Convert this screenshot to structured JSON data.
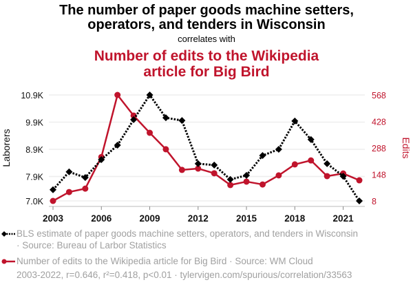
{
  "header": {
    "title_line1": "The number of paper goods machine setters,",
    "title_line2": "operators, and tenders in Wisconsin",
    "connector": "correlates with",
    "title2_line1": "Number of edits to the Wikipedia",
    "title2_line2": "article for Big Bird"
  },
  "legend": {
    "series1_line1": "BLS estimate of paper goods machine setters, operators, and tenders in Wisconsin",
    "series1_line2": "· Source: Bureau of Larbor Statistics",
    "series2": "Number of edits to the Wikipedia article for Big Bird · Source: WM Cloud",
    "footer": "2003-2022, r=0.646, r²=0.418, p<0.01 · tylervigen.com/spurious/correlation/33563"
  },
  "colors": {
    "series1": "#000000",
    "series2": "#c0142c",
    "grid": "#eeeeee",
    "legend_text": "#a0a0a0"
  },
  "chart_data": {
    "type": "line",
    "title": "The number of paper goods machine setters, operators, and tenders in Wisconsin correlates with Number of edits to the Wikipedia article for Big Bird",
    "x": [
      2003,
      2004,
      2005,
      2006,
      2007,
      2008,
      2009,
      2010,
      2011,
      2012,
      2013,
      2014,
      2015,
      2016,
      2017,
      2018,
      2019,
      2020,
      2021,
      2022
    ],
    "x_ticks": [
      "2003",
      "2006",
      "2009",
      "2012",
      "2015",
      "2018",
      "2021"
    ],
    "x_tick_values": [
      2003,
      2006,
      2009,
      2012,
      2015,
      2018,
      2021
    ],
    "xlim": [
      2003,
      2022
    ],
    "y_left": {
      "label": "Laborers",
      "ticks": [
        "10.9K",
        "9.9K",
        "8.9K",
        "7.9K",
        "7.0K"
      ],
      "tick_values": [
        10900,
        9900,
        8900,
        7900,
        7000
      ],
      "ylim": [
        7000,
        10900
      ]
    },
    "y_right": {
      "label": "Edits",
      "ticks": [
        "568",
        "428",
        "288",
        "148",
        "8"
      ],
      "tick_values": [
        568,
        428,
        288,
        148,
        8
      ],
      "ylim": [
        8,
        568
      ]
    },
    "grid": true,
    "series": [
      {
        "name": "BLS estimate of paper goods machine setters, operators, and tenders in Wisconsin",
        "axis": "left",
        "style": "dotted-diamond",
        "values": [
          7410,
          8070,
          7860,
          8520,
          9050,
          9990,
          10900,
          10060,
          9960,
          8370,
          8320,
          7790,
          7940,
          8670,
          8900,
          9940,
          9260,
          8370,
          7910,
          7000
        ]
      },
      {
        "name": "Number of edits to the Wikipedia article for Big Bird",
        "axis": "right",
        "style": "solid-circle",
        "values": [
          8,
          55,
          73,
          240,
          568,
          459,
          368,
          281,
          172,
          179,
          154,
          92,
          110,
          95,
          143,
          201,
          222,
          139,
          153,
          117
        ]
      }
    ]
  }
}
